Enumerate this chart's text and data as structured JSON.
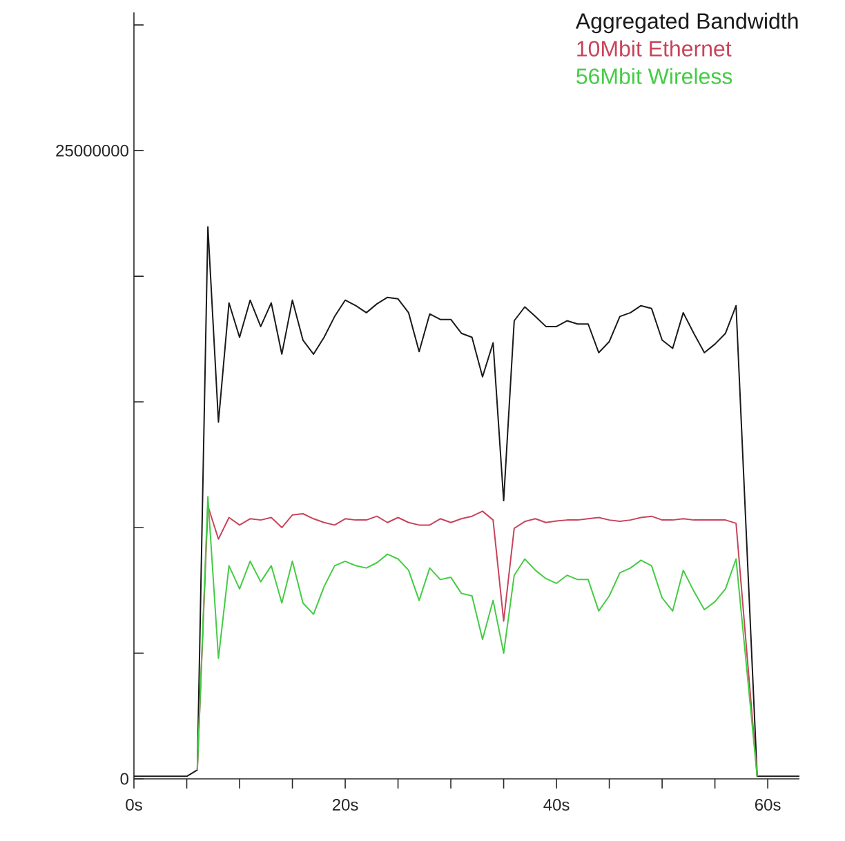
{
  "chart_data": {
    "type": "line",
    "xlim": [
      0,
      63
    ],
    "ylim": [
      0,
      30500000
    ],
    "xticks": [
      {
        "value": 0,
        "label": "0s"
      },
      {
        "value": 5,
        "label": null
      },
      {
        "value": 10,
        "label": null
      },
      {
        "value": 15,
        "label": null
      },
      {
        "value": 20,
        "label": "20s"
      },
      {
        "value": 25,
        "label": null
      },
      {
        "value": 30,
        "label": null
      },
      {
        "value": 35,
        "label": null
      },
      {
        "value": 40,
        "label": "40s"
      },
      {
        "value": 45,
        "label": null
      },
      {
        "value": 50,
        "label": null
      },
      {
        "value": 55,
        "label": null
      },
      {
        "value": 60,
        "label": "60s"
      }
    ],
    "yticks": [
      0,
      {
        "value": 5000000,
        "label": null
      },
      {
        "value": 10000000,
        "label": null
      },
      {
        "value": 15000000,
        "label": null
      },
      {
        "value": 20000000,
        "label": null
      },
      25000000,
      {
        "value": 30000000,
        "label": null
      }
    ],
    "legend": "top right",
    "grid": false,
    "marker": "none",
    "line_style": "solid",
    "series": [
      {
        "name": "Aggregated Bandwidth",
        "color": "#1a1a1a",
        "x": [
          0,
          1,
          2,
          3,
          4,
          5,
          6,
          7,
          8,
          9,
          10,
          11,
          12,
          13,
          14,
          15,
          16,
          17,
          18,
          19,
          20,
          21,
          22,
          23,
          24,
          25,
          26,
          27,
          28,
          29,
          30,
          31,
          32,
          33,
          34,
          35,
          36,
          37,
          38,
          39,
          40,
          41,
          42,
          43,
          44,
          45,
          46,
          47,
          48,
          49,
          50,
          51,
          52,
          53,
          54,
          55,
          56,
          57,
          59,
          60,
          61,
          62,
          63
        ],
        "values": [
          100000,
          100000,
          100000,
          100000,
          100000,
          100000,
          350000,
          21970000,
          14200000,
          18940000,
          17570000,
          19050000,
          18000000,
          18940000,
          16900000,
          19050000,
          17460000,
          16900000,
          17570000,
          18400000,
          19050000,
          18830000,
          18550000,
          18900000,
          19160000,
          19100000,
          18550000,
          17000000,
          18500000,
          18280000,
          18280000,
          17730000,
          17570000,
          16000000,
          17350000,
          11070000,
          18230000,
          18780000,
          18400000,
          18000000,
          18000000,
          18230000,
          18100000,
          18100000,
          16960000,
          17400000,
          18400000,
          18550000,
          18830000,
          18720000,
          17460000,
          17130000,
          18550000,
          17730000,
          16960000,
          17300000,
          17730000,
          18830000,
          100000,
          100000,
          100000,
          100000,
          100000
        ]
      },
      {
        "name": "10Mbit Ethernet",
        "color": "#c8445a",
        "x": [
          6,
          7,
          8,
          9,
          10,
          11,
          12,
          13,
          14,
          15,
          16,
          17,
          18,
          19,
          20,
          21,
          22,
          23,
          24,
          25,
          26,
          27,
          28,
          29,
          30,
          31,
          32,
          33,
          34,
          35,
          36,
          37,
          38,
          39,
          40,
          41,
          42,
          43,
          44,
          45,
          46,
          47,
          48,
          49,
          50,
          51,
          52,
          53,
          54,
          55,
          56,
          57,
          59
        ],
        "values": [
          350000,
          10860000,
          9540000,
          10400000,
          10100000,
          10350000,
          10300000,
          10400000,
          10000000,
          10500000,
          10550000,
          10350000,
          10200000,
          10100000,
          10350000,
          10300000,
          10300000,
          10450000,
          10200000,
          10400000,
          10200000,
          10100000,
          10100000,
          10350000,
          10200000,
          10350000,
          10450000,
          10650000,
          10300000,
          6280000,
          9970000,
          10240000,
          10350000,
          10200000,
          10260000,
          10300000,
          10300000,
          10350000,
          10400000,
          10300000,
          10250000,
          10300000,
          10400000,
          10450000,
          10300000,
          10300000,
          10350000,
          10300000,
          10300000,
          10300000,
          10300000,
          10170000,
          100000
        ]
      },
      {
        "name": "56Mbit Wireless",
        "color": "#44cc44",
        "x": [
          6,
          7,
          8,
          9,
          10,
          11,
          12,
          13,
          14,
          15,
          16,
          17,
          18,
          19,
          20,
          21,
          22,
          23,
          24,
          25,
          26,
          27,
          28,
          29,
          30,
          31,
          32,
          33,
          34,
          35,
          36,
          37,
          38,
          39,
          40,
          41,
          42,
          43,
          44,
          45,
          46,
          47,
          48,
          49,
          50,
          51,
          52,
          53,
          54,
          55,
          56,
          57,
          59
        ],
        "values": [
          350000,
          11230000,
          4800000,
          8480000,
          7560000,
          8660000,
          7840000,
          8480000,
          7000000,
          8660000,
          7000000,
          6550000,
          7650000,
          8480000,
          8660000,
          8480000,
          8390000,
          8600000,
          8940000,
          8750000,
          8300000,
          7100000,
          8390000,
          7930000,
          8020000,
          7380000,
          7280000,
          5550000,
          7100000,
          5000000,
          8100000,
          8750000,
          8300000,
          7970000,
          7780000,
          8100000,
          7930000,
          7930000,
          6680000,
          7280000,
          8200000,
          8390000,
          8700000,
          8480000,
          7200000,
          6680000,
          8300000,
          7470000,
          6730000,
          7050000,
          7560000,
          8750000,
          100000
        ]
      }
    ]
  }
}
